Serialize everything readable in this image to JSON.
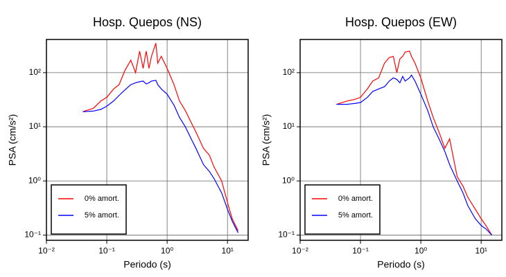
{
  "chart_data": [
    {
      "type": "line",
      "title": "Hosp. Quepos (NS)",
      "x_label": "Periodo (s)",
      "y_label": "PSA (cm/s²)",
      "log_x": true,
      "log_y": true,
      "grid": true,
      "legend": "lower left",
      "xlim": [
        0.01,
        22
      ],
      "ylim": [
        0.08,
        410
      ],
      "xticks": [
        {
          "value": 0.01,
          "label": "10⁻²"
        },
        {
          "value": 0.1,
          "label": "10⁻¹"
        },
        {
          "value": 1,
          "label": "10⁰"
        },
        {
          "value": 10,
          "label": "10¹"
        }
      ],
      "yticks": [
        {
          "value": 0.1,
          "label": "10⁻¹"
        },
        {
          "value": 1,
          "label": "10⁰"
        },
        {
          "value": 10,
          "label": "10¹"
        },
        {
          "value": 100,
          "label": "10²"
        }
      ],
      "x": [
        0.04,
        0.06,
        0.08,
        0.1,
        0.13,
        0.16,
        0.2,
        0.25,
        0.3,
        0.35,
        0.4,
        0.45,
        0.5,
        0.55,
        0.65,
        0.7,
        0.8,
        1.0,
        1.3,
        1.6,
        2,
        2.5,
        3,
        4,
        5,
        6,
        8,
        10,
        12,
        15
      ],
      "series": [
        {
          "name": "0% amort.",
          "color": "#ff0000",
          "values": [
            19,
            22,
            30,
            35,
            50,
            60,
            110,
            170,
            100,
            250,
            120,
            250,
            120,
            200,
            350,
            150,
            200,
            120,
            60,
            30,
            20,
            12,
            8,
            4,
            3,
            1.8,
            1.0,
            0.4,
            0.2,
            0.12
          ]
        },
        {
          "name": "5% amort.",
          "color": "#0000ff",
          "values": [
            19,
            19.5,
            21,
            24,
            30,
            38,
            48,
            60,
            65,
            68,
            70,
            62,
            65,
            70,
            72,
            60,
            50,
            40,
            25,
            15,
            10,
            6,
            4,
            2,
            1.5,
            1.1,
            0.6,
            0.3,
            0.18,
            0.11
          ]
        }
      ]
    },
    {
      "type": "line",
      "title": "Hosp. Quepos (EW)",
      "x_label": "Periodo (s)",
      "y_label": "PSA (cm/s²)",
      "log_x": true,
      "log_y": true,
      "grid": true,
      "legend": "lower left",
      "xlim": [
        0.01,
        22
      ],
      "ylim": [
        0.08,
        410
      ],
      "xticks": [
        {
          "value": 0.01,
          "label": "10⁻²"
        },
        {
          "value": 0.1,
          "label": "10⁻¹"
        },
        {
          "value": 1,
          "label": "10⁰"
        },
        {
          "value": 10,
          "label": "10¹"
        }
      ],
      "yticks": [
        {
          "value": 0.1,
          "label": "10⁻¹"
        },
        {
          "value": 1,
          "label": "10⁰"
        },
        {
          "value": 10,
          "label": "10¹"
        },
        {
          "value": 100,
          "label": "10²"
        }
      ],
      "x": [
        0.04,
        0.06,
        0.08,
        0.1,
        0.13,
        0.16,
        0.2,
        0.25,
        0.3,
        0.35,
        0.4,
        0.45,
        0.5,
        0.55,
        0.65,
        0.7,
        0.8,
        1.0,
        1.3,
        1.6,
        2,
        2.5,
        3,
        4,
        5,
        6,
        8,
        10,
        12,
        15
      ],
      "series": [
        {
          "name": "0% amort.",
          "color": "#ff0000",
          "values": [
            26,
            30,
            32,
            35,
            50,
            70,
            80,
            150,
            190,
            200,
            100,
            180,
            200,
            240,
            250,
            200,
            150,
            80,
            30,
            15,
            8,
            4,
            6,
            1.2,
            0.8,
            0.5,
            0.3,
            0.2,
            0.15,
            0.1
          ]
        },
        {
          "name": "5% amort.",
          "color": "#0000ff",
          "values": [
            26,
            26,
            27,
            28,
            35,
            45,
            50,
            55,
            70,
            80,
            75,
            65,
            85,
            70,
            80,
            90,
            70,
            40,
            20,
            10,
            6,
            3.5,
            2,
            1.0,
            0.6,
            0.35,
            0.2,
            0.15,
            0.13,
            0.1
          ]
        }
      ]
    }
  ]
}
